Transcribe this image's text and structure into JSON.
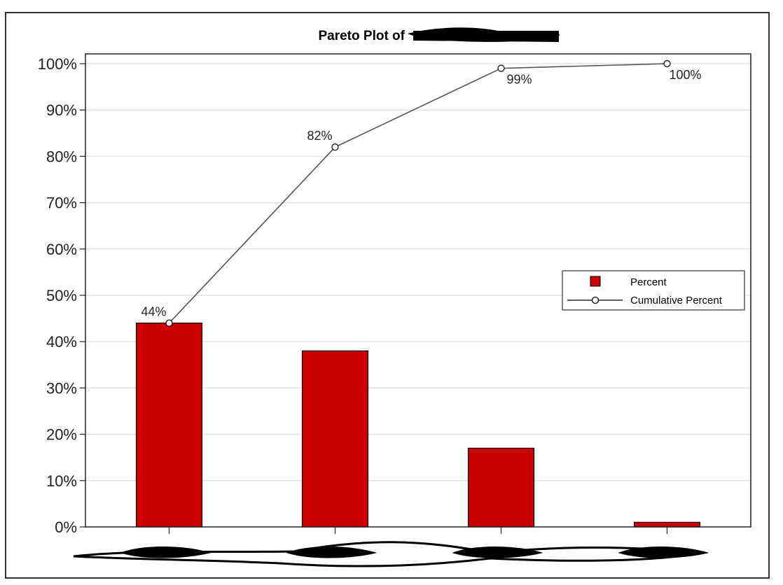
{
  "chart_data": {
    "type": "bar",
    "title": "Pareto Plot of",
    "title_redacted": true,
    "categories": [
      "",
      "",
      "",
      ""
    ],
    "categories_redacted": true,
    "series": [
      {
        "name": "Percent",
        "type": "bar",
        "values": [
          44,
          38,
          17,
          1
        ],
        "color": "#cc0000"
      },
      {
        "name": "Cumulative Percent",
        "type": "line",
        "values": [
          44,
          82,
          99,
          100
        ],
        "color": "#555555",
        "marker": "open-circle"
      }
    ],
    "data_labels": [
      "44%",
      "82%",
      "99%",
      "100%"
    ],
    "yticks": [
      "0%",
      "10%",
      "20%",
      "30%",
      "40%",
      "50%",
      "60%",
      "70%",
      "80%",
      "90%",
      "100%"
    ],
    "ylim": [
      0,
      100
    ],
    "xlabel": "",
    "ylabel": "",
    "grid": true,
    "legend_position": "right"
  }
}
